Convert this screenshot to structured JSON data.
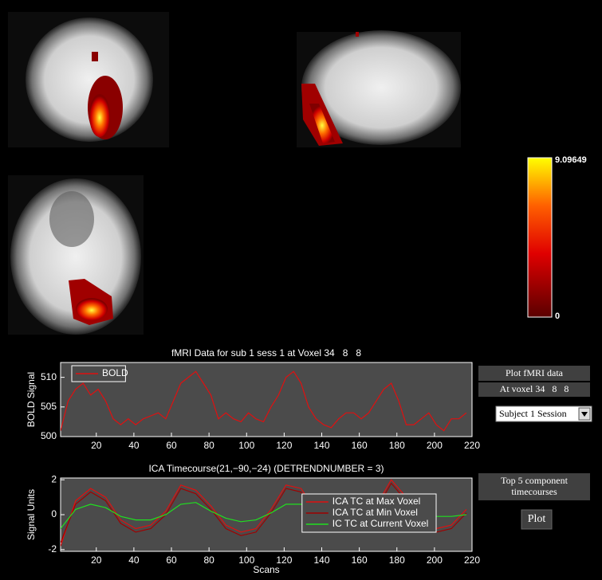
{
  "colorbar": {
    "max": 9.09649,
    "min": 0
  },
  "controls": {
    "plot_fmri": "Plot fMRI data",
    "voxel": "At voxel 34   8   8",
    "session": "Subject 1 Session",
    "top_components": "Top 5 component\ntimecourses",
    "plot": "Plot"
  },
  "chart_data": [
    {
      "type": "line",
      "title": "fMRI Data for sub 1 sess 1 at Voxel 34   8   8",
      "y_label": "BOLD Signal",
      "x": [
        1,
        5,
        9,
        13,
        17,
        21,
        25,
        29,
        33,
        37,
        41,
        45,
        49,
        53,
        57,
        61,
        65,
        69,
        73,
        77,
        81,
        85,
        89,
        93,
        97,
        101,
        105,
        109,
        113,
        117,
        121,
        125,
        129,
        133,
        137,
        141,
        145,
        149,
        153,
        157,
        161,
        165,
        169,
        173,
        177,
        181,
        185,
        189,
        193,
        197,
        201,
        205,
        209,
        213,
        217
      ],
      "series": [
        {
          "name": "BOLD",
          "color": "#e01010",
          "values": [
            501,
            506,
            508,
            509,
            507,
            508,
            506,
            503,
            502,
            503,
            502,
            503,
            503.5,
            504,
            503,
            506,
            509,
            510,
            511,
            509,
            507,
            503,
            504,
            503,
            502.5,
            504,
            503,
            502.5,
            505,
            507,
            510,
            511,
            509,
            505,
            503,
            502,
            501.5,
            503,
            504,
            504,
            503,
            504,
            506,
            508,
            509,
            506,
            502,
            502,
            503,
            504,
            502,
            501,
            503,
            503,
            504
          ]
        }
      ],
      "xlim": [
        1,
        220
      ],
      "ylim": [
        500,
        512.5
      ],
      "xticks": [
        20,
        40,
        60,
        80,
        100,
        120,
        140,
        160,
        180,
        200,
        220
      ],
      "yticks": [
        500,
        505,
        510
      ],
      "legend": "upper left"
    },
    {
      "type": "line",
      "title": "ICA Timecourse(21,−90,−24) (DETRENDNUMBER = 3)",
      "y_label": "Signal Units",
      "x_label": "Scans",
      "x": [
        1,
        9,
        17,
        25,
        33,
        41,
        49,
        57,
        65,
        73,
        81,
        89,
        97,
        105,
        113,
        121,
        129,
        137,
        145,
        153,
        161,
        169,
        177,
        185,
        193,
        201,
        209,
        217
      ],
      "series": [
        {
          "name": "ICA TC at Max Voxel",
          "color": "#e01010",
          "values": [
            -1.8,
            0.8,
            1.5,
            1.0,
            -0.3,
            -0.8,
            -0.6,
            0.2,
            1.7,
            1.4,
            0.5,
            -0.6,
            -1.0,
            -0.8,
            0.3,
            1.7,
            1.5,
            0.2,
            -0.6,
            -0.5,
            -0.3,
            0.5,
            2.0,
            1.0,
            -0.3,
            -0.8,
            -0.6,
            0.3
          ]
        },
        {
          "name": "ICA TC at Min Voxel",
          "color": "#a00000",
          "values": [
            -1.6,
            0.6,
            1.3,
            0.8,
            -0.5,
            -1.0,
            -0.8,
            0.0,
            1.5,
            1.2,
            0.3,
            -0.8,
            -1.2,
            -1.0,
            0.1,
            1.5,
            1.3,
            0.0,
            -0.8,
            -0.7,
            -0.5,
            0.3,
            1.8,
            0.8,
            -0.5,
            -1.0,
            -0.8,
            0.1
          ]
        },
        {
          "name": "IC TC at Current Voxel",
          "color": "#20e020",
          "values": [
            -0.8,
            0.3,
            0.6,
            0.4,
            -0.1,
            -0.3,
            -0.3,
            0.0,
            0.6,
            0.7,
            0.2,
            -0.2,
            -0.4,
            -0.3,
            0.1,
            0.6,
            0.6,
            0.1,
            -0.2,
            -0.2,
            -0.2,
            0.2,
            0.5,
            0.3,
            0.0,
            -0.1,
            -0.1,
            0.0
          ]
        }
      ],
      "xlim": [
        1,
        220
      ],
      "ylim": [
        -2.1,
        2.1
      ],
      "xticks": [
        20,
        40,
        60,
        80,
        100,
        120,
        140,
        160,
        180,
        200,
        220
      ],
      "yticks": [
        -2,
        0,
        2
      ],
      "legend": "lower right"
    }
  ]
}
